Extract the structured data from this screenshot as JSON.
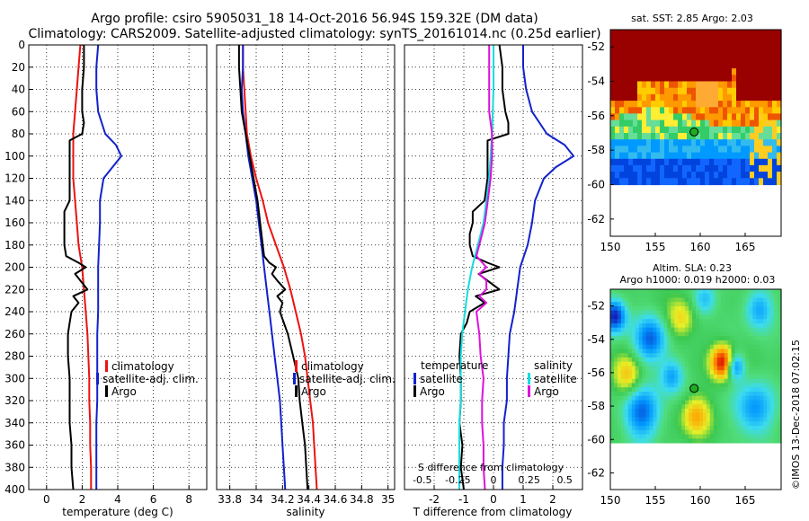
{
  "figure": {
    "title_line1": "Argo profile: csiro 5905031_18 14-Oct-2016 56.94S 159.32E (DM data)",
    "title_line2": "Climatology: CARS2009. Satellite-adjusted climatology: synTS_20161014.nc (0.25d earlier)",
    "stamp": "©IMOS 13-Dec-2018 07:02:15"
  },
  "colors": {
    "climatology": "#ee1111",
    "satellite": "#1122cc",
    "argo": "#000000",
    "argo_salinity": "#dd11dd",
    "satellite_salinity": "#11dddd"
  },
  "chart_data": [
    {
      "id": "temperature",
      "type": "line",
      "xlabel": "temperature (deg C)",
      "ylabel": "",
      "xlim": [
        -1,
        9
      ],
      "ylim": [
        400,
        0
      ],
      "xticks": [
        "0",
        "2",
        "4",
        "6",
        "8"
      ],
      "yticks": [
        "0",
        "20",
        "40",
        "60",
        "80",
        "100",
        "120",
        "140",
        "160",
        "180",
        "200",
        "220",
        "240",
        "260",
        "280",
        "300",
        "320",
        "340",
        "360",
        "380",
        "400"
      ],
      "grid": true,
      "legend": [
        "climatology",
        "satellite-adj. clim.",
        "Argo"
      ],
      "series": [
        {
          "name": "climatology",
          "color": "#ee1111",
          "depth": [
            0,
            20,
            40,
            60,
            80,
            100,
            120,
            140,
            160,
            180,
            200,
            220,
            240,
            260,
            280,
            300,
            320,
            340,
            360,
            380,
            400
          ],
          "values": [
            1.9,
            1.8,
            1.7,
            1.6,
            1.5,
            1.5,
            1.5,
            1.6,
            1.7,
            1.8,
            2.0,
            2.1,
            2.2,
            2.3,
            2.35,
            2.4,
            2.4,
            2.45,
            2.45,
            2.5,
            2.5
          ]
        },
        {
          "name": "satellite-adj. clim.",
          "color": "#1122cc",
          "depth": [
            0,
            20,
            40,
            60,
            80,
            90,
            100,
            110,
            120,
            140,
            160,
            180,
            200,
            220,
            240,
            260,
            280,
            300,
            320,
            340,
            360,
            380,
            400
          ],
          "values": [
            2.9,
            2.8,
            2.8,
            2.9,
            3.3,
            3.9,
            4.2,
            3.7,
            3.2,
            3.0,
            3.0,
            2.95,
            2.9,
            2.9,
            2.9,
            2.85,
            2.85,
            2.85,
            2.85,
            2.8,
            2.8,
            2.8,
            2.8
          ]
        },
        {
          "name": "Argo",
          "color": "#000000",
          "depth": [
            0,
            20,
            40,
            60,
            70,
            80,
            86,
            100,
            120,
            140,
            150,
            160,
            170,
            180,
            190,
            196,
            200,
            206,
            212,
            220,
            226,
            232,
            240,
            250,
            260,
            280,
            300,
            320,
            340,
            360,
            380,
            400
          ],
          "values": [
            2.1,
            2.1,
            2.0,
            2.0,
            2.1,
            2.0,
            1.3,
            1.3,
            1.3,
            1.3,
            1.0,
            1.0,
            1.0,
            1.0,
            1.1,
            1.8,
            2.2,
            1.6,
            1.9,
            2.3,
            1.5,
            1.8,
            1.4,
            1.3,
            1.2,
            1.2,
            1.3,
            1.3,
            1.3,
            1.4,
            1.4,
            1.5
          ]
        }
      ]
    },
    {
      "id": "salinity",
      "type": "line",
      "xlabel": "salinity",
      "xlim": [
        33.7,
        35.05
      ],
      "ylim": [
        400,
        0
      ],
      "xticks": [
        "33.8",
        "34",
        "34.2",
        "34.4",
        "34.6",
        "34.8",
        "35"
      ],
      "grid": true,
      "legend": [
        "climatology",
        "satellite-adj. clim.",
        "Argo"
      ],
      "series": [
        {
          "name": "climatology",
          "color": "#ee1111",
          "depth": [
            0,
            20,
            40,
            60,
            80,
            100,
            120,
            140,
            160,
            180,
            200,
            220,
            240,
            260,
            280,
            300,
            320,
            340,
            360,
            380,
            400
          ],
          "values": [
            33.9,
            33.9,
            33.91,
            33.92,
            33.93,
            33.96,
            34.0,
            34.05,
            34.09,
            34.15,
            34.21,
            34.26,
            34.3,
            34.34,
            34.37,
            34.39,
            34.41,
            34.43,
            34.44,
            34.45,
            34.46
          ]
        },
        {
          "name": "satellite-adj. clim.",
          "color": "#1122cc",
          "depth": [
            0,
            20,
            40,
            60,
            80,
            100,
            120,
            140,
            160,
            180,
            200,
            220,
            240,
            260,
            280,
            300,
            320,
            340,
            360,
            380,
            400
          ],
          "values": [
            33.9,
            33.9,
            33.89,
            33.9,
            33.92,
            33.94,
            33.97,
            34.0,
            34.02,
            34.04,
            34.06,
            34.08,
            34.1,
            34.12,
            34.14,
            34.16,
            34.18,
            34.19,
            34.2,
            34.21,
            34.22
          ]
        },
        {
          "name": "Argo",
          "color": "#000000",
          "depth": [
            0,
            20,
            40,
            60,
            80,
            100,
            120,
            140,
            160,
            180,
            190,
            196,
            200,
            206,
            212,
            220,
            226,
            232,
            240,
            260,
            280,
            300,
            320,
            340,
            360,
            380,
            400
          ],
          "values": [
            33.87,
            33.87,
            33.88,
            33.89,
            33.92,
            33.95,
            33.98,
            34.01,
            34.03,
            34.05,
            34.06,
            34.1,
            34.15,
            34.12,
            34.16,
            34.22,
            34.16,
            34.2,
            34.18,
            34.24,
            34.28,
            34.32,
            34.33,
            34.35,
            34.37,
            34.38,
            34.39
          ]
        }
      ]
    },
    {
      "id": "difference",
      "type": "line",
      "xlabel": "T difference from climatology",
      "xlabel_top": "S difference from climatology",
      "xlim": [
        -3,
        3
      ],
      "ylim": [
        400,
        0
      ],
      "xticks": [
        "-2",
        "-1",
        "0",
        "1",
        "2"
      ],
      "xticks_s": [
        "-0.5",
        "-0.25",
        "0",
        "0.25",
        "0.5"
      ],
      "grid": true,
      "legend_temperature_title": "temperature",
      "legend_temperature": [
        "satellite",
        "Argo"
      ],
      "legend_salinity_title": "salinity",
      "legend_salinity": [
        "satellite",
        "Argo"
      ],
      "series": [
        {
          "name": "T satellite",
          "color": "#1122cc",
          "depth": [
            0,
            20,
            40,
            60,
            80,
            90,
            100,
            110,
            120,
            140,
            160,
            180,
            200,
            220,
            240,
            260,
            280,
            300,
            320,
            340,
            360,
            380,
            400
          ],
          "values": [
            1.0,
            1.0,
            1.1,
            1.3,
            1.8,
            2.4,
            2.7,
            2.1,
            1.7,
            1.4,
            1.3,
            1.15,
            0.9,
            0.8,
            0.7,
            0.55,
            0.5,
            0.45,
            0.45,
            0.35,
            0.35,
            0.3,
            0.3
          ]
        },
        {
          "name": "T Argo",
          "color": "#000000",
          "depth": [
            0,
            20,
            40,
            60,
            70,
            80,
            86,
            100,
            120,
            140,
            150,
            160,
            170,
            180,
            190,
            196,
            200,
            206,
            212,
            220,
            226,
            232,
            240,
            250,
            260,
            280,
            300,
            320,
            340,
            360,
            380,
            400
          ],
          "values": [
            0.2,
            0.3,
            0.3,
            0.4,
            0.5,
            0.5,
            -0.2,
            -0.2,
            -0.2,
            -0.3,
            -0.7,
            -0.7,
            -0.8,
            -0.8,
            -0.7,
            -0.2,
            0.2,
            -0.5,
            -0.2,
            0.2,
            -0.6,
            -0.3,
            -0.8,
            -0.9,
            -1.1,
            -1.15,
            -1.1,
            -1.1,
            -1.15,
            -1.05,
            -1.1,
            -1.0
          ]
        },
        {
          "name": "S satellite",
          "color": "#11dddd",
          "depth": [
            0,
            40,
            80,
            120,
            160,
            180,
            200,
            220,
            240,
            260,
            280,
            300,
            320,
            340,
            360,
            380,
            400
          ],
          "values": [
            0.0,
            0.0,
            -0.01,
            -0.03,
            -0.07,
            -0.11,
            -0.15,
            -0.18,
            -0.2,
            -0.22,
            -0.23,
            -0.23,
            -0.23,
            -0.24,
            -0.24,
            -0.24,
            -0.24
          ]
        },
        {
          "name": "S Argo",
          "color": "#dd11dd",
          "depth": [
            0,
            20,
            40,
            60,
            80,
            100,
            120,
            140,
            160,
            180,
            190,
            200,
            206,
            212,
            220,
            226,
            232,
            240,
            260,
            280,
            300,
            320,
            340,
            360,
            380,
            400
          ],
          "values": [
            -0.03,
            -0.03,
            -0.03,
            -0.03,
            -0.01,
            -0.01,
            -0.02,
            -0.04,
            -0.06,
            -0.1,
            -0.12,
            -0.05,
            -0.1,
            -0.05,
            -0.05,
            -0.1,
            -0.05,
            -0.12,
            -0.1,
            -0.09,
            -0.07,
            -0.08,
            -0.08,
            -0.07,
            -0.07,
            -0.06
          ]
        }
      ]
    },
    {
      "id": "map_sst",
      "type": "heatmap",
      "title": "sat. SST: 2.85 Argo: 2.03",
      "xlim": [
        150,
        169
      ],
      "ylim": [
        -63,
        -51
      ],
      "xticks": [
        "150",
        "155",
        "160",
        "165"
      ],
      "yticks": [
        "-52",
        "-54",
        "-56",
        "-58",
        "-60",
        "-62"
      ],
      "marker": {
        "lon": 159.32,
        "lat": -56.94
      }
    },
    {
      "id": "map_sla",
      "type": "heatmap",
      "title": "Altim. SLA: 0.23",
      "subtitle": "Argo h1000: 0.019 h2000: 0.03",
      "xlim": [
        150,
        169
      ],
      "ylim": [
        -63,
        -51
      ],
      "xticks": [
        "150",
        "155",
        "160",
        "165"
      ],
      "yticks": [
        "-52",
        "-54",
        "-56",
        "-58",
        "-60",
        "-62"
      ],
      "marker": {
        "lon": 159.32,
        "lat": -56.94
      }
    }
  ]
}
